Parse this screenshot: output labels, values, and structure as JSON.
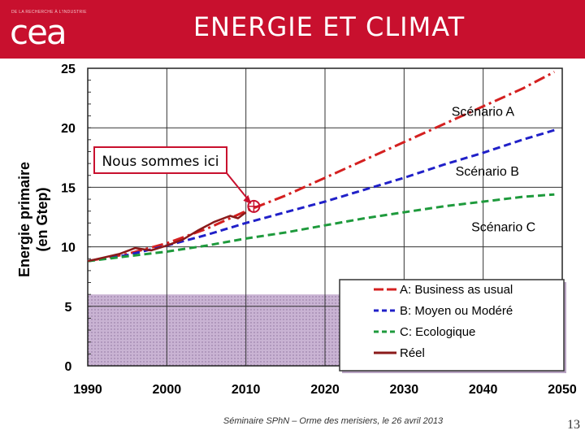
{
  "header": {
    "title": "ENERGIE ET CLIMAT",
    "logo_text": "cea",
    "logo_tagline": "DE LA RECHERCHE À L'INDUSTRIE",
    "color": "#c8102e"
  },
  "chart_data": {
    "type": "line",
    "title": "",
    "xlabel": "",
    "ylabel": "Energie primaire\n(en Gtep)",
    "xlim": [
      1990,
      2050
    ],
    "ylim": [
      0,
      25
    ],
    "xticks": [
      1990,
      2000,
      2010,
      2020,
      2030,
      2040,
      2050
    ],
    "yticks": [
      0,
      5,
      10,
      15,
      20,
      25
    ],
    "grid": true,
    "series": [
      {
        "name": "A: Business as usual",
        "label": "Scénario A",
        "color": "#d42020",
        "style": "dashdot",
        "x": [
          1990,
          1995,
          2000,
          2005,
          2010,
          2015,
          2020,
          2025,
          2030,
          2035,
          2040,
          2045,
          2049
        ],
        "y": [
          8.8,
          9.4,
          10.3,
          11.5,
          13.0,
          14.3,
          15.8,
          17.3,
          18.8,
          20.3,
          21.8,
          23.3,
          24.7
        ]
      },
      {
        "name": "B: Moyen ou Modéré",
        "label": "Scénario B",
        "color": "#2020c8",
        "style": "dash",
        "x": [
          1990,
          1995,
          2000,
          2005,
          2010,
          2015,
          2020,
          2025,
          2030,
          2035,
          2040,
          2045,
          2049
        ],
        "y": [
          8.8,
          9.3,
          10.1,
          11.0,
          12.0,
          12.9,
          13.8,
          14.8,
          15.8,
          16.9,
          17.9,
          19.0,
          19.8
        ]
      },
      {
        "name": "C: Ecologique",
        "label": "Scénario C",
        "color": "#1e9a3c",
        "style": "dash",
        "x": [
          1990,
          1995,
          2000,
          2005,
          2010,
          2015,
          2020,
          2025,
          2030,
          2035,
          2040,
          2045,
          2049
        ],
        "y": [
          8.8,
          9.2,
          9.6,
          10.1,
          10.7,
          11.2,
          11.8,
          12.4,
          12.9,
          13.4,
          13.8,
          14.2,
          14.4
        ]
      },
      {
        "name": "Réel",
        "color": "#8b1a1a",
        "style": "solid",
        "x": [
          1990,
          1992,
          1994,
          1996,
          1998,
          2000,
          2002,
          2004,
          2006,
          2008,
          2009,
          2010
        ],
        "y": [
          8.8,
          9.1,
          9.4,
          9.9,
          9.7,
          10.1,
          10.6,
          11.4,
          12.1,
          12.6,
          12.4,
          12.9
        ]
      }
    ],
    "scenario_labels": [
      {
        "text": "Scénario A",
        "x": 2036,
        "y": 21.0
      },
      {
        "text": "Scénario B",
        "x": 2036.5,
        "y": 16.0
      },
      {
        "text": "Scénario C",
        "x": 2038.5,
        "y": 11.3
      }
    ],
    "annotation": {
      "text": "Nous sommes ici",
      "target_x": 2011,
      "target_y": 13.4
    },
    "shaded_region": {
      "y_from": 0,
      "y_to": 6.0,
      "color": "#c9b3d3"
    },
    "legend_placement": "bottom-right",
    "legend_entries": [
      {
        "text": "A: Business as usual",
        "color": "#d42020"
      },
      {
        "text": "B: Moyen ou Modéré",
        "color": "#2020c8"
      },
      {
        "text": "C: Ecologique",
        "color": "#1e9a3c"
      },
      {
        "text": "Réel",
        "color": "#8b1a1a"
      }
    ]
  },
  "footer": {
    "text": "Séminaire SPhN – Orme des merisiers, le 26 avril 2013",
    "page_number": "13"
  }
}
